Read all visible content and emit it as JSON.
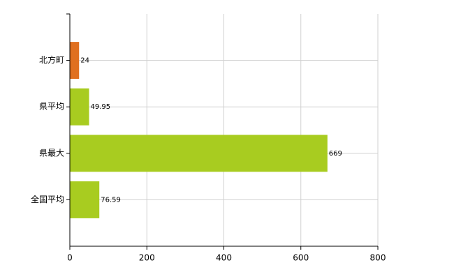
{
  "chart_data": {
    "type": "bar",
    "orientation": "horizontal",
    "categories": [
      "北方町",
      "県平均",
      "県最大",
      "全国平均"
    ],
    "values": [
      24,
      49.95,
      669,
      76.59
    ],
    "colors": [
      "#e07020",
      "#a8cc20",
      "#a8cc20",
      "#a8cc20"
    ],
    "xlim": [
      0,
      800
    ],
    "xticks": [
      0,
      200,
      400,
      600,
      800
    ],
    "grid": true
  }
}
